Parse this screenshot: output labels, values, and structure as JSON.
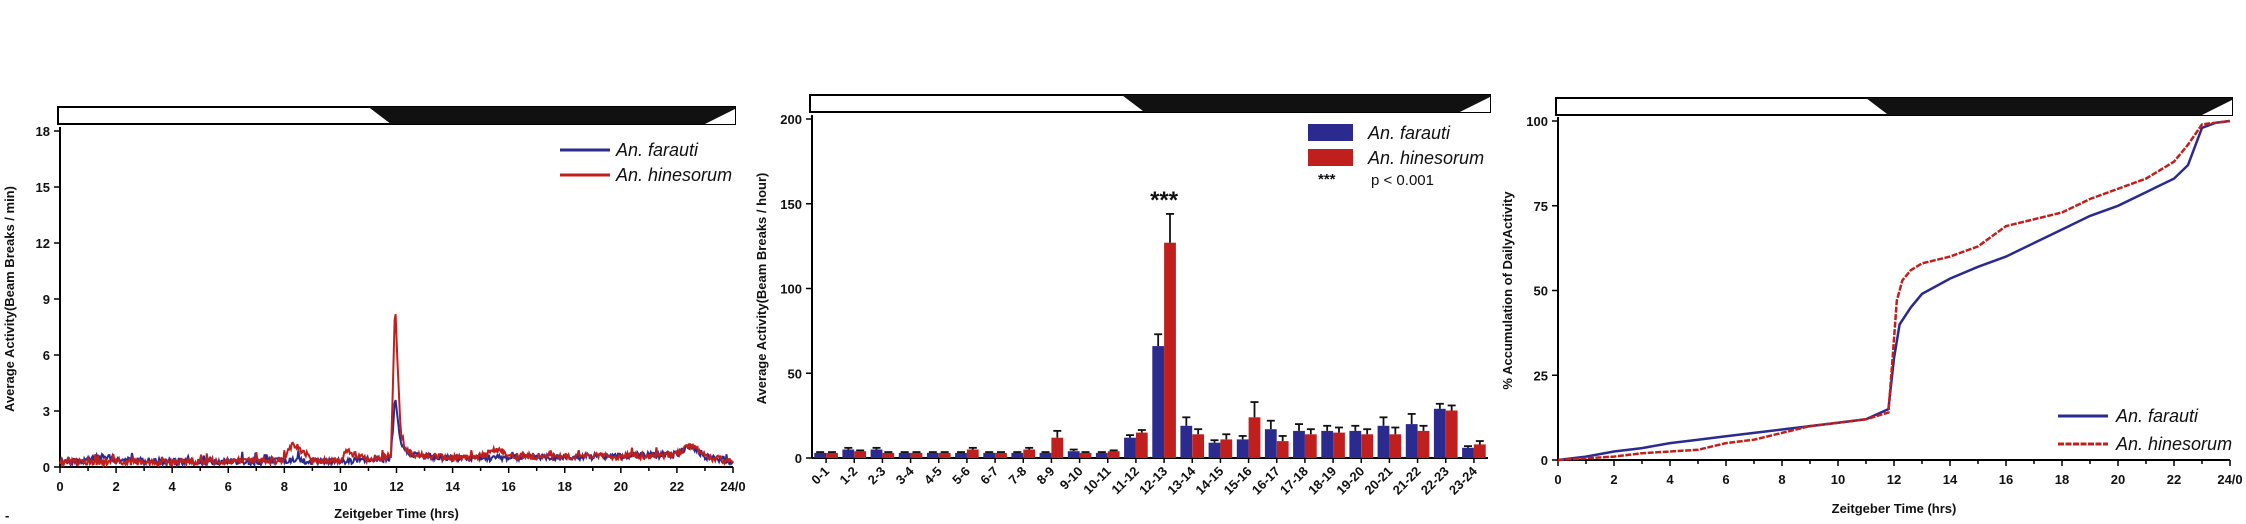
{
  "chart_data": [
    {
      "type": "line",
      "xlabel": "Zeitgeber Time (hrs)",
      "ylabel": "Average Activity(Beam Breaks / min)",
      "xlim": [
        0,
        24
      ],
      "ylim": [
        0,
        18
      ],
      "x_ticks": [
        "0",
        "2",
        "4",
        "6",
        "8",
        "10",
        "12",
        "14",
        "16",
        "18",
        "20",
        "22",
        "24/0"
      ],
      "y_ticks": [
        "0",
        "3",
        "6",
        "9",
        "12",
        "15",
        "18"
      ],
      "light_dark_bar": {
        "dark_start": 11,
        "dark_end": 23
      },
      "legend": {
        "position": "top-right"
      },
      "series": [
        {
          "name": "An. farauti",
          "color": "#2b2a8f",
          "x": [
            0,
            1,
            1.5,
            2,
            3,
            4,
            5,
            6,
            7,
            8,
            9,
            10,
            11,
            11.8,
            11.95,
            12.05,
            12.15,
            12.3,
            12.6,
            13,
            14,
            15,
            16,
            17,
            18,
            19,
            20,
            21,
            22,
            22.5,
            23,
            24
          ],
          "y": [
            0.2,
            0.25,
            0.5,
            0.3,
            0.25,
            0.2,
            0.2,
            0.25,
            0.2,
            0.3,
            0.2,
            0.25,
            0.3,
            0.4,
            3.9,
            2.6,
            1.2,
            0.8,
            0.6,
            0.5,
            0.4,
            0.4,
            0.45,
            0.5,
            0.45,
            0.5,
            0.5,
            0.55,
            0.6,
            1.1,
            0.5,
            0.2
          ]
        },
        {
          "name": "An. hinesorum",
          "color": "#c0201d",
          "x": [
            0,
            1,
            2,
            3,
            4,
            5,
            6,
            7,
            8,
            8.3,
            9,
            10,
            10.2,
            11,
            11.8,
            11.95,
            12.05,
            12.15,
            12.3,
            12.6,
            13,
            14,
            15,
            15.7,
            16,
            17,
            18,
            19,
            20,
            21,
            22,
            22.5,
            23,
            24
          ],
          "y": [
            0.2,
            0.2,
            0.2,
            0.2,
            0.15,
            0.2,
            0.25,
            0.25,
            0.3,
            1.2,
            0.3,
            0.2,
            0.8,
            0.3,
            0.5,
            8.9,
            5.2,
            2.0,
            0.9,
            0.6,
            0.5,
            0.4,
            0.5,
            0.9,
            0.5,
            0.5,
            0.5,
            0.5,
            0.5,
            0.5,
            0.6,
            1.1,
            0.5,
            0.2
          ]
        }
      ]
    },
    {
      "type": "bar",
      "xlabel": "",
      "ylabel": "Average Activity(Beam Breaks / hour)",
      "ylim": [
        0,
        200
      ],
      "y_ticks": [
        "0",
        "50",
        "100",
        "150",
        "200"
      ],
      "light_dark_bar": {
        "dark_start": 11,
        "dark_end": 23
      },
      "legend": {
        "position": "top-right"
      },
      "categories": [
        "0-1",
        "1-2",
        "2-3",
        "3-4",
        "4-5",
        "5-6",
        "6-7",
        "7-8",
        "8-9",
        "9-10",
        "10-11",
        "11-12",
        "12-13",
        "13-14",
        "14-15",
        "15-16",
        "16-17",
        "17-18",
        "18-19",
        "19-20",
        "20-21",
        "21-22",
        "22-23",
        "23-24"
      ],
      "series": [
        {
          "name": "An. farauti",
          "color": "#2b2a8f",
          "values": [
            3,
            5,
            5,
            3,
            3,
            3,
            3,
            3,
            3,
            4,
            3,
            12,
            66,
            19,
            9,
            11,
            17,
            16,
            16,
            16,
            19,
            20,
            29,
            6
          ],
          "errors": [
            0.5,
            1,
            1,
            0.5,
            0.5,
            0.5,
            0.5,
            0.5,
            0.5,
            1,
            0.5,
            1.5,
            7,
            5,
            1.5,
            2,
            5,
            4,
            3,
            3,
            5,
            6,
            3,
            1
          ]
        },
        {
          "name": "An. hinesorum",
          "color": "#c0201d",
          "values": [
            3,
            4,
            3,
            3,
            3,
            5,
            3,
            5,
            12,
            3,
            4,
            15,
            127,
            14,
            11,
            24,
            10,
            14,
            15,
            14,
            14,
            16,
            28,
            8
          ],
          "errors": [
            0.5,
            0.5,
            0.5,
            0.5,
            0.5,
            1,
            0.5,
            1,
            4,
            0.5,
            0.5,
            1.5,
            17,
            3,
            3,
            9,
            3,
            3,
            3,
            3,
            4,
            3,
            3,
            2
          ]
        }
      ],
      "annotations": [
        {
          "label": "***",
          "category": "12-13"
        },
        {
          "label": "***",
          "text": "p < 0.001"
        }
      ]
    },
    {
      "type": "line",
      "xlabel": "Zeitgeber Time (hrs)",
      "ylabel": "% Accumulation of DailyActivity",
      "xlim": [
        0,
        24
      ],
      "ylim": [
        0,
        100
      ],
      "x_ticks": [
        "0",
        "2",
        "4",
        "6",
        "8",
        "10",
        "12",
        "14",
        "16",
        "18",
        "20",
        "22",
        "24/0"
      ],
      "y_ticks": [
        "0",
        "25",
        "50",
        "75",
        "100"
      ],
      "light_dark_bar": {
        "dark_start": 11,
        "dark_end": 23
      },
      "legend": {
        "position": "bottom-right"
      },
      "series": [
        {
          "name": "An. farauti",
          "color": "#2b2a8f",
          "x": [
            0,
            1,
            2,
            3,
            4,
            5,
            6,
            7,
            8,
            9,
            10,
            11,
            11.8,
            12,
            12.2,
            12.6,
            13,
            14,
            15,
            16,
            17,
            18,
            19,
            20,
            21,
            22,
            22.5,
            23,
            23.5,
            24
          ],
          "y": [
            0,
            1,
            2.5,
            3.5,
            5,
            6,
            7,
            8,
            9,
            10,
            11,
            12,
            15,
            30,
            40,
            45,
            49,
            53.5,
            57,
            60,
            64,
            68,
            72,
            75,
            79,
            83,
            87,
            98,
            99.5,
            100
          ]
        },
        {
          "name": "An. hinesorum",
          "color": "#c0201d",
          "x": [
            0,
            1,
            2,
            3,
            4,
            5,
            6,
            7,
            8,
            9,
            10,
            11,
            11.8,
            11.95,
            12.1,
            12.3,
            12.6,
            13,
            14,
            15,
            16,
            17,
            18,
            19,
            20,
            21,
            22,
            22.5,
            23,
            23.5,
            24
          ],
          "y": [
            0,
            0.5,
            1,
            2,
            2.5,
            3,
            5,
            6,
            8,
            10,
            11,
            12,
            14,
            30,
            47,
            53,
            56,
            58,
            60,
            63,
            69,
            71,
            73,
            77,
            80,
            83,
            88,
            93,
            99,
            99.5,
            100
          ]
        }
      ]
    }
  ]
}
